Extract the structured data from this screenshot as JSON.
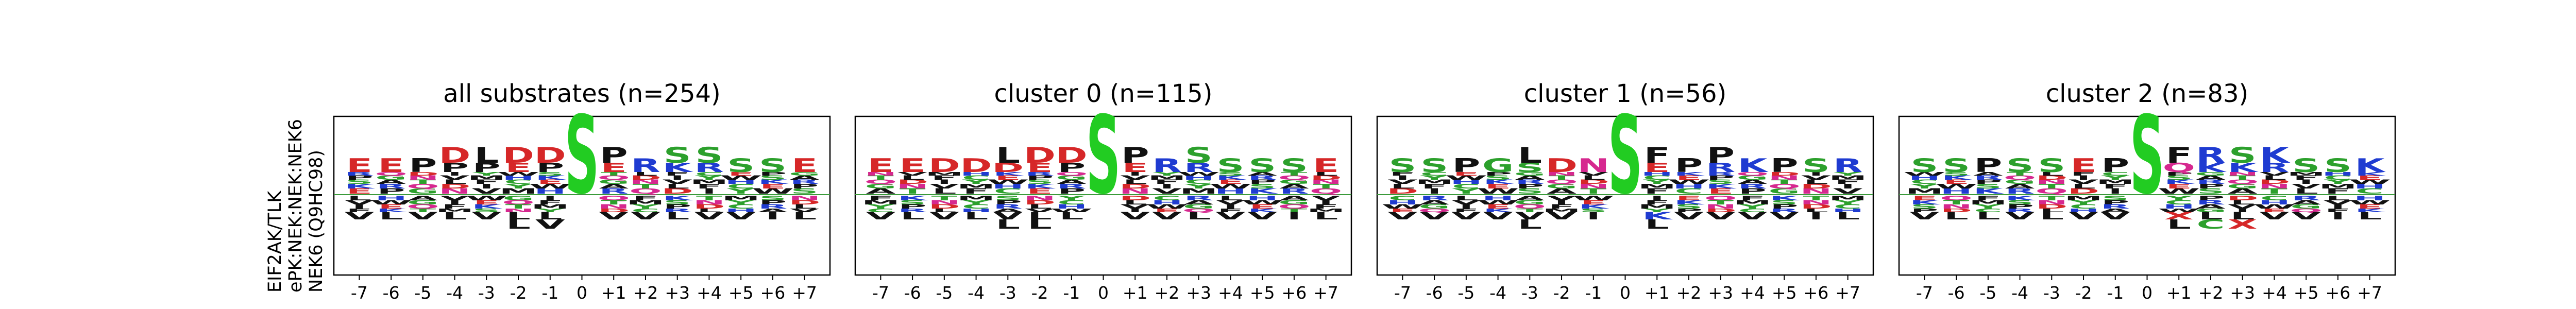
{
  "row_labels": [
    "EIF2AK/TLK",
    "ePK:NEK:NEK:NEK6",
    "NEK6 (Q9HC98)"
  ],
  "colors": {
    "acidic": "#d62728",
    "basic": "#1f3bd1",
    "polar": "#2ca02c",
    "hydrophobic": "#111111",
    "amide": "#d6288f",
    "other": "#e377c2",
    "center": "#22cc22",
    "baseline": "#3a9a3a"
  },
  "chart_data": [
    {
      "type": "sequence-logo",
      "title": "all substrates (n=254)",
      "positions": [
        "-7",
        "-6",
        "-5",
        "-4",
        "-3",
        "-2",
        "-1",
        "0",
        "+1",
        "+2",
        "+3",
        "+4",
        "+5",
        "+6",
        "+7"
      ],
      "center_residue": "S",
      "top_residues": [
        [
          "E"
        ],
        [
          "E"
        ],
        [
          "P"
        ],
        [
          "D",
          "P"
        ],
        [
          "L",
          "P"
        ],
        [
          "D",
          "E"
        ],
        [
          "D",
          "P"
        ],
        [
          "S"
        ],
        [
          "P",
          "E"
        ],
        [
          "R"
        ],
        [
          "S",
          "K"
        ],
        [
          "S",
          "R"
        ],
        [
          "S"
        ],
        [
          "S"
        ],
        [
          "E"
        ]
      ],
      "bottom_residues": [
        [
          "V"
        ],
        [
          "L"
        ],
        [
          "V"
        ],
        [
          "L"
        ],
        [
          "V"
        ],
        [
          "L",
          "L"
        ],
        [
          "L",
          "V"
        ],
        [],
        [
          "V"
        ],
        [
          "V"
        ],
        [
          "L"
        ],
        [
          "V"
        ],
        [
          "V"
        ],
        [
          "I"
        ],
        [
          "L"
        ]
      ]
    },
    {
      "type": "sequence-logo",
      "title": "cluster 0 (n=115)",
      "positions": [
        "-7",
        "-6",
        "-5",
        "-4",
        "-3",
        "-2",
        "-1",
        "0",
        "+1",
        "+2",
        "+3",
        "+4",
        "+5",
        "+6",
        "+7"
      ],
      "center_residue": "S",
      "top_residues": [
        [
          "E"
        ],
        [
          "E"
        ],
        [
          "D"
        ],
        [
          "D"
        ],
        [
          "L",
          "D"
        ],
        [
          "D",
          "E"
        ],
        [
          "D",
          "P"
        ],
        [
          "S"
        ],
        [
          "P",
          "E"
        ],
        [
          "R"
        ],
        [
          "S",
          "R"
        ],
        [
          "S"
        ],
        [
          "S"
        ],
        [
          "S"
        ],
        [
          "E"
        ]
      ],
      "bottom_residues": [
        [
          "V"
        ],
        [
          "L"
        ],
        [
          "V"
        ],
        [
          "L"
        ],
        [
          "V",
          "L"
        ],
        [
          "L",
          "L"
        ],
        [
          "L"
        ],
        [],
        [
          "V"
        ],
        [
          "V"
        ],
        [
          "L"
        ],
        [
          "V"
        ],
        [
          "V"
        ],
        [
          "I"
        ],
        [
          "L"
        ]
      ]
    },
    {
      "type": "sequence-logo",
      "title": "cluster 1 (n=56)",
      "positions": [
        "-7",
        "-6",
        "-5",
        "-4",
        "-3",
        "-2",
        "-1",
        "0",
        "+1",
        "+2",
        "+3",
        "+4",
        "+5",
        "+6",
        "+7"
      ],
      "center_residue": "S",
      "top_residues": [
        [
          "S"
        ],
        [
          "S"
        ],
        [
          "P"
        ],
        [
          "G"
        ],
        [
          "L",
          "S"
        ],
        [
          "D"
        ],
        [
          "N"
        ],
        [
          "S"
        ],
        [
          "F",
          "E"
        ],
        [
          "P"
        ],
        [
          "P",
          "R"
        ],
        [
          "K"
        ],
        [
          "P"
        ],
        [
          "S"
        ],
        [
          "R"
        ]
      ],
      "bottom_residues": [
        [
          "V"
        ],
        [
          "V"
        ],
        [
          "V"
        ],
        [
          "V"
        ],
        [
          "V",
          "L"
        ],
        [
          "V"
        ],
        [
          "I"
        ],
        [],
        [
          "K",
          "L"
        ],
        [
          "V"
        ],
        [
          "V"
        ],
        [
          "V"
        ],
        [
          "V"
        ],
        [
          "I"
        ],
        [
          "L"
        ]
      ]
    },
    {
      "type": "sequence-logo",
      "title": "cluster 2 (n=83)",
      "positions": [
        "-7",
        "-6",
        "-5",
        "-4",
        "-3",
        "-2",
        "-1",
        "0",
        "+1",
        "+2",
        "+3",
        "+4",
        "+5",
        "+6",
        "+7"
      ],
      "center_residue": "S",
      "top_residues": [
        [
          "S"
        ],
        [
          "S"
        ],
        [
          "P"
        ],
        [
          "S"
        ],
        [
          "S"
        ],
        [
          "E"
        ],
        [
          "P"
        ],
        [
          "S"
        ],
        [
          "F",
          "Q"
        ],
        [
          "R",
          "K"
        ],
        [
          "S",
          "K"
        ],
        [
          "K",
          "R"
        ],
        [
          "S"
        ],
        [
          "S"
        ],
        [
          "K"
        ]
      ],
      "bottom_residues": [
        [
          "V"
        ],
        [
          "L"
        ],
        [
          "L"
        ],
        [
          "V"
        ],
        [
          "L"
        ],
        [
          "V"
        ],
        [
          "V"
        ],
        [],
        [
          "X",
          "L"
        ],
        [
          "L",
          "C"
        ],
        [
          "L",
          "X"
        ],
        [
          "V"
        ],
        [
          "V"
        ],
        [
          "I"
        ],
        [
          "L"
        ]
      ]
    }
  ]
}
